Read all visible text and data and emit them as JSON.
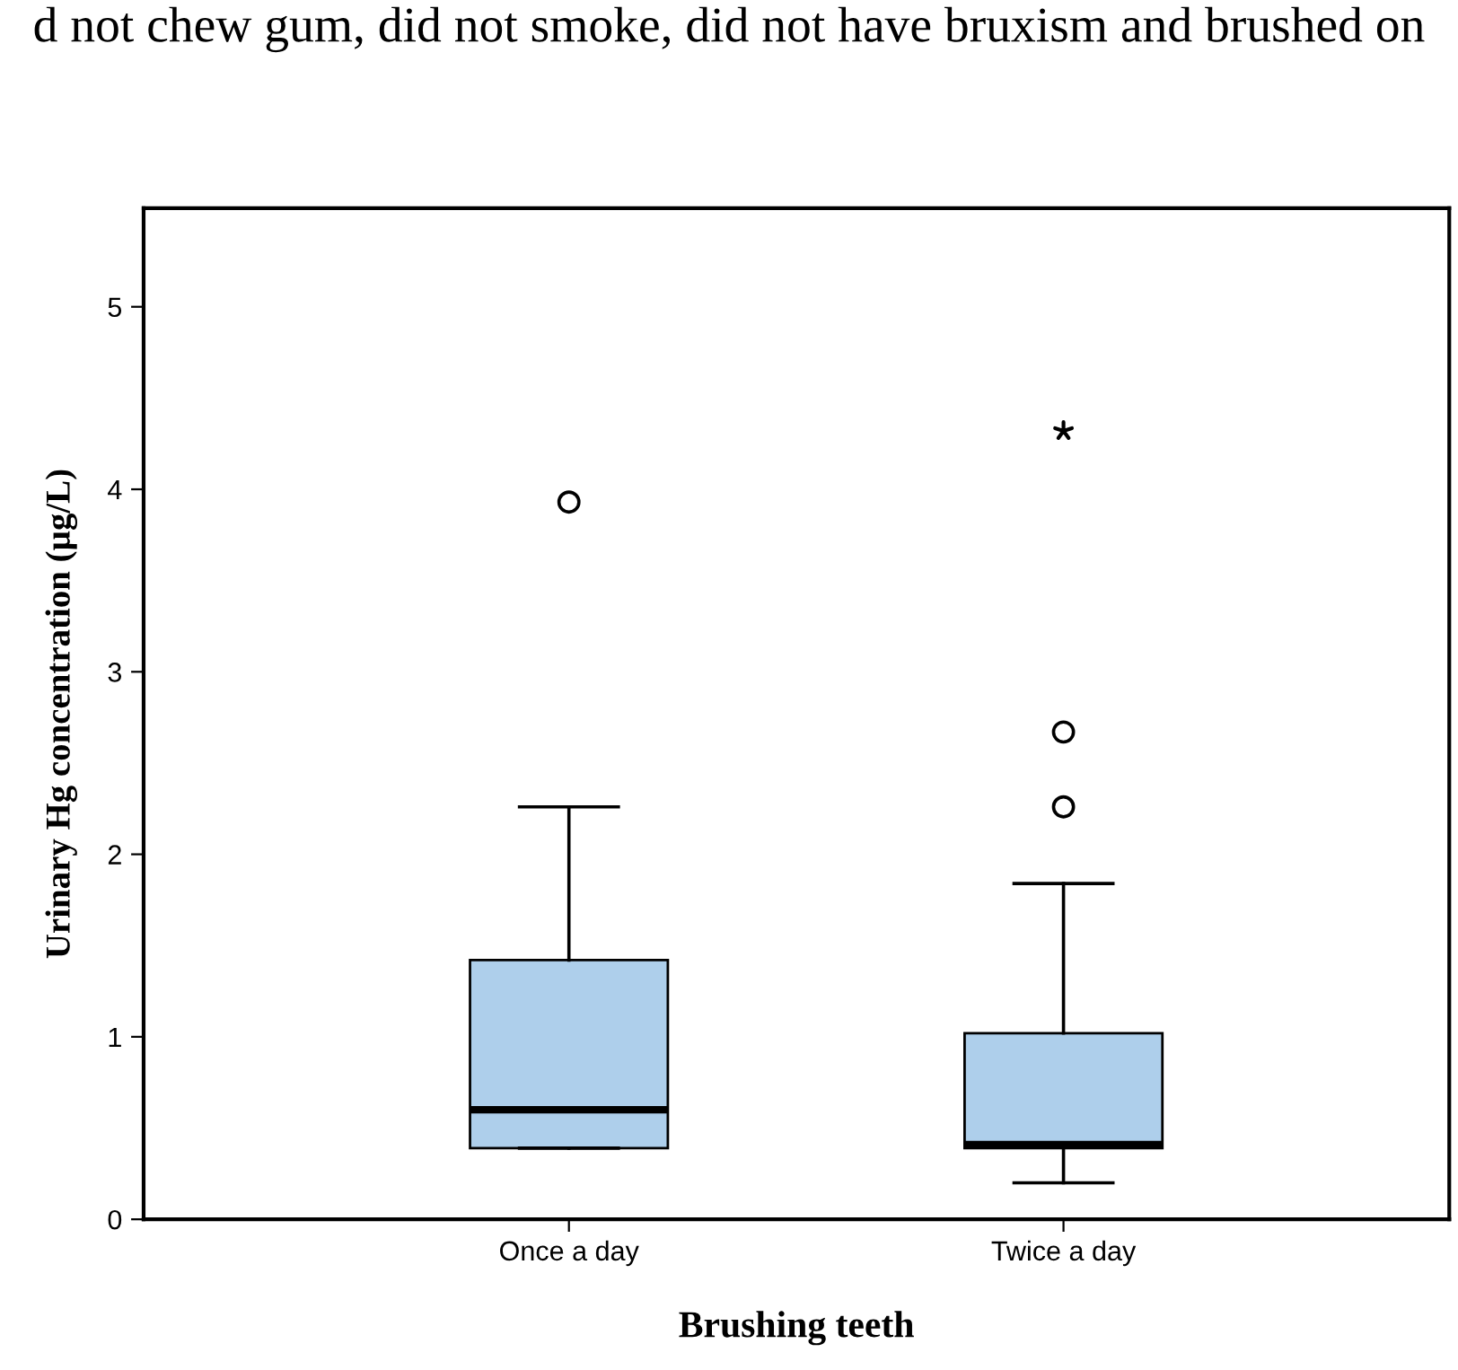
{
  "chart_data": {
    "type": "box",
    "xlabel": "Brushing teeth",
    "ylabel": "Urinary Hg concentration (µg/L)",
    "annotations": [
      "d not chew gum, did not smoke, did not have bruxism and brushed on"
    ],
    "categories": [
      "Once a day",
      "Twice a day"
    ],
    "ylim": [
      0,
      5.54
    ],
    "yticks": [
      0,
      1,
      2,
      3,
      4,
      5
    ],
    "grid": false,
    "legend": false,
    "series": [
      {
        "color": "#aecfeb",
        "boxes": [
          {
            "low": 0.39,
            "q1": 0.39,
            "median": 0.6,
            "q3": 1.42,
            "high": 2.26,
            "outliers": [
              3.93
            ]
          },
          {
            "low": 0.2,
            "q1": 0.39,
            "median": 0.41,
            "q3": 1.02,
            "high": 1.84,
            "outliers": [
              2.26,
              2.67
            ]
          }
        ]
      },
      {
        "type": "scatter",
        "x": [
          "Twice a day"
        ],
        "values": [
          4.32
        ],
        "marker": "star",
        "color": "#000000"
      }
    ]
  }
}
